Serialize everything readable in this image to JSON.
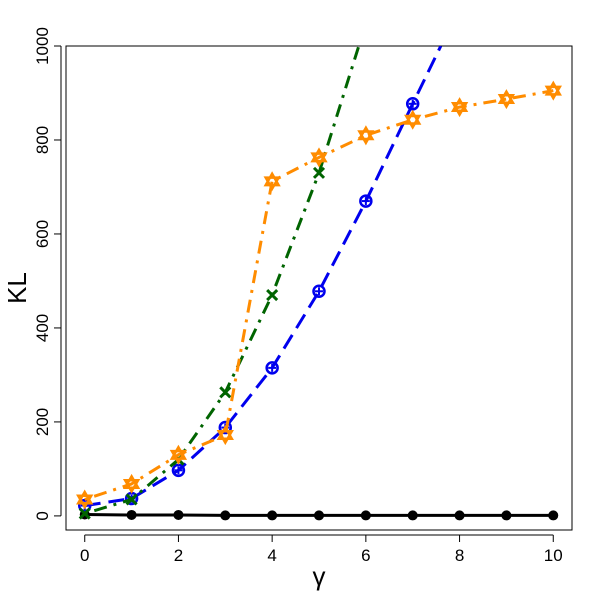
{
  "chart_data": {
    "type": "line",
    "xlabel": "γ",
    "ylabel": "KL",
    "xlim": [
      -0.4,
      10.4
    ],
    "ylim": [
      -30,
      1000
    ],
    "xticks": [
      0,
      2,
      4,
      6,
      8,
      10
    ],
    "yticks": [
      0,
      200,
      400,
      600,
      800,
      1000
    ],
    "grid": false,
    "legend": "none",
    "series": [
      {
        "color": "#000000",
        "dash": "solid",
        "marker": "dot",
        "x": [
          0,
          1,
          2,
          3,
          4,
          5,
          6,
          7,
          8,
          9,
          10
        ],
        "y": [
          3,
          2,
          2,
          1,
          1,
          1,
          1,
          1,
          1,
          1,
          1
        ]
      },
      {
        "color": "#0000ee",
        "dash": "longdash",
        "marker": "circle-plus",
        "x": [
          0,
          1,
          2,
          3,
          4,
          5,
          6,
          7,
          7.6
        ],
        "y": [
          22,
          37,
          97,
          188,
          315,
          478,
          670,
          877,
          1000
        ]
      },
      {
        "color": "#006400",
        "dash": "dotdash",
        "marker": "x",
        "x": [
          0,
          1,
          2,
          3,
          4,
          5,
          5.85
        ],
        "y": [
          5,
          35,
          120,
          263,
          470,
          730,
          1000
        ]
      },
      {
        "color": "#ff8c00",
        "dash": "dotdash",
        "marker": "star",
        "x": [
          0,
          1,
          2,
          3,
          4,
          5,
          6,
          7,
          8,
          9,
          10
        ],
        "y": [
          35,
          68,
          130,
          172,
          712,
          763,
          810,
          843,
          870,
          887,
          905
        ]
      }
    ]
  }
}
